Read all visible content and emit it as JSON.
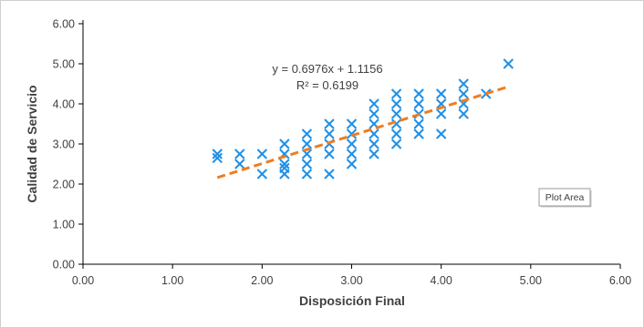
{
  "chart_data": {
    "type": "scatter",
    "title": "",
    "xlabel": "Disposición Final",
    "ylabel": "Calidad de Servicio",
    "xlim": [
      0,
      6
    ],
    "ylim": [
      0,
      6
    ],
    "x_ticks": [
      "0.00",
      "1.00",
      "2.00",
      "3.00",
      "4.00",
      "5.00",
      "6.00"
    ],
    "y_ticks": [
      "0.00",
      "1.00",
      "2.00",
      "3.00",
      "4.00",
      "5.00",
      "6.00"
    ],
    "grid": false,
    "marker": "x",
    "marker_color": "#1e90e8",
    "trendline": {
      "slope": 0.6976,
      "intercept": 1.1156,
      "x_range": [
        1.5,
        4.75
      ],
      "color": "#ee7d22",
      "style": "dashed",
      "equation_label": "y = 0.6976x + 1.1156",
      "r2_label": "R² = 0.6199"
    },
    "points": [
      [
        1.5,
        2.75
      ],
      [
        1.5,
        2.65
      ],
      [
        1.75,
        2.75
      ],
      [
        1.75,
        2.5
      ],
      [
        2.0,
        2.75
      ],
      [
        2.0,
        2.25
      ],
      [
        2.25,
        3.0
      ],
      [
        2.25,
        2.75
      ],
      [
        2.25,
        2.5
      ],
      [
        2.25,
        2.4
      ],
      [
        2.25,
        2.25
      ],
      [
        2.5,
        3.25
      ],
      [
        2.5,
        3.0
      ],
      [
        2.5,
        2.75
      ],
      [
        2.5,
        2.5
      ],
      [
        2.5,
        2.25
      ],
      [
        2.75,
        3.5
      ],
      [
        2.75,
        3.25
      ],
      [
        2.75,
        3.0
      ],
      [
        2.75,
        2.75
      ],
      [
        2.75,
        2.25
      ],
      [
        3.0,
        3.5
      ],
      [
        3.0,
        3.25
      ],
      [
        3.0,
        3.0
      ],
      [
        3.0,
        2.75
      ],
      [
        3.0,
        2.5
      ],
      [
        3.25,
        4.0
      ],
      [
        3.25,
        3.75
      ],
      [
        3.25,
        3.5
      ],
      [
        3.25,
        3.25
      ],
      [
        3.25,
        3.0
      ],
      [
        3.25,
        2.75
      ],
      [
        3.5,
        4.25
      ],
      [
        3.5,
        4.0
      ],
      [
        3.5,
        3.75
      ],
      [
        3.5,
        3.5
      ],
      [
        3.5,
        3.25
      ],
      [
        3.5,
        3.0
      ],
      [
        3.75,
        4.25
      ],
      [
        3.75,
        4.0
      ],
      [
        3.75,
        3.75
      ],
      [
        3.75,
        3.5
      ],
      [
        3.75,
        3.25
      ],
      [
        4.0,
        4.25
      ],
      [
        4.0,
        4.0
      ],
      [
        4.0,
        3.75
      ],
      [
        4.0,
        3.25
      ],
      [
        4.25,
        4.5
      ],
      [
        4.25,
        4.25
      ],
      [
        4.25,
        4.0
      ],
      [
        4.25,
        3.75
      ],
      [
        4.5,
        4.25
      ],
      [
        4.75,
        5.0
      ]
    ]
  },
  "tooltip": {
    "text": "Plot Area"
  }
}
